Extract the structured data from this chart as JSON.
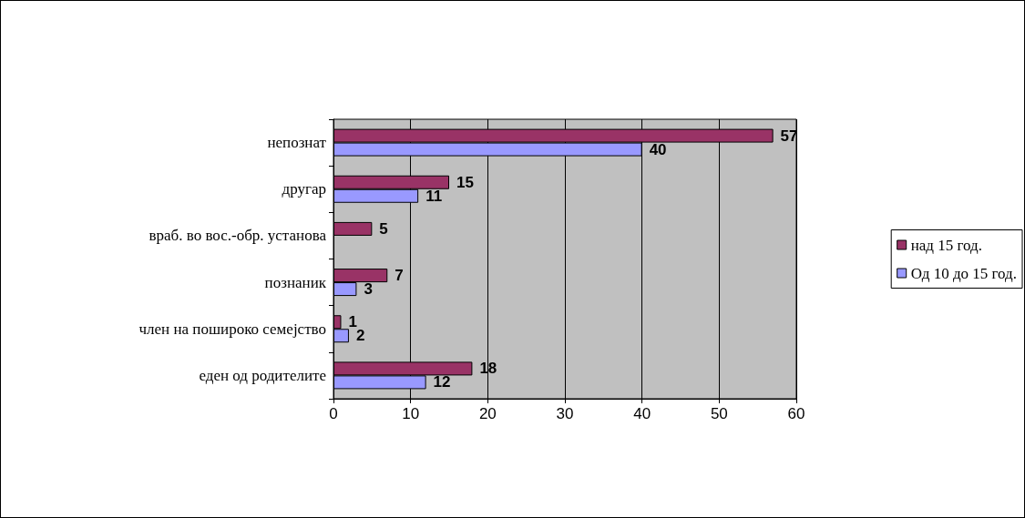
{
  "chart_data": {
    "type": "bar",
    "orientation": "horizontal",
    "categories": [
      "непознат",
      "другар",
      "враб. во вос.-обр. установа",
      "познаник",
      "член на пошироко семејство",
      "еден од родителите"
    ],
    "series": [
      {
        "name": "над 15 год.",
        "color": "#993366",
        "values": [
          57,
          15,
          5,
          7,
          1,
          18
        ]
      },
      {
        "name": "Од 10 до 15 год.",
        "color": "#9999ff",
        "values": [
          40,
          11,
          null,
          3,
          2,
          12
        ]
      }
    ],
    "xlim": [
      0,
      60
    ],
    "xticks": [
      0,
      10,
      20,
      30,
      40,
      50,
      60
    ],
    "grid": "x",
    "legend": "right",
    "data_labels": true
  }
}
